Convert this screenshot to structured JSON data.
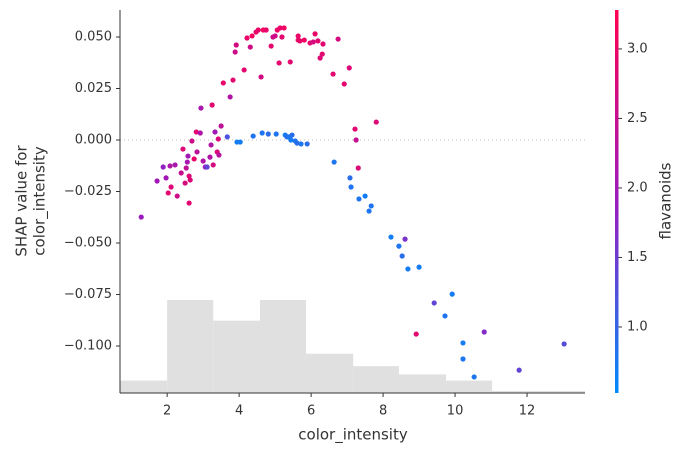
{
  "chart_data": {
    "type": "scatter",
    "xlabel": "color_intensity",
    "ylabel": [
      "SHAP value for",
      "color_intensity"
    ],
    "xlim": [
      0.69,
      13.61
    ],
    "xticks": [
      2,
      4,
      6,
      8,
      10,
      12
    ],
    "ylim": [
      -0.1228,
      0.0631
    ],
    "yticks": [
      {
        "value": -0.1,
        "label": "−0.100"
      },
      {
        "value": -0.075,
        "label": "−0.075"
      },
      {
        "value": -0.05,
        "label": "−0.050"
      },
      {
        "value": -0.025,
        "label": "−0.025"
      },
      {
        "value": 0,
        "label": "0.000"
      },
      {
        "value": 0.025,
        "label": "0.025"
      },
      {
        "value": 0.05,
        "label": "0.050"
      }
    ],
    "hline": 0,
    "x": [
      1.28,
      1.72,
      1.89,
      1.97,
      2.03,
      2.08,
      2.11,
      2.22,
      2.28,
      2.39,
      2.44,
      2.5,
      2.53,
      2.56,
      2.58,
      2.61,
      2.61,
      2.64,
      2.69,
      2.75,
      2.81,
      2.83,
      2.92,
      2.94,
      3.0,
      3.06,
      3.11,
      3.19,
      3.22,
      3.25,
      3.28,
      3.33,
      3.39,
      3.42,
      3.44,
      3.5,
      3.56,
      3.67,
      3.75,
      3.83,
      3.89,
      3.92,
      3.94,
      4.03,
      4.14,
      4.22,
      4.31,
      4.36,
      4.39,
      4.47,
      4.53,
      4.61,
      4.64,
      4.67,
      4.75,
      4.81,
      4.89,
      4.94,
      5.0,
      5.03,
      5.06,
      5.11,
      5.14,
      5.19,
      5.25,
      5.28,
      5.33,
      5.39,
      5.42,
      5.44,
      5.47,
      5.56,
      5.61,
      5.64,
      5.64,
      5.69,
      5.72,
      5.81,
      5.89,
      5.97,
      6.06,
      6.11,
      6.19,
      6.25,
      6.31,
      6.33,
      6.64,
      6.61,
      6.75,
      6.92,
      7.06,
      7.08,
      7.11,
      7.22,
      7.25,
      7.31,
      7.33,
      7.5,
      7.61,
      7.67,
      7.81,
      8.22,
      8.44,
      8.53,
      8.61,
      8.69,
      9.0,
      8.92,
      9.42,
      9.72,
      9.92,
      10.22,
      10.22,
      10.53,
      10.81,
      11.78,
      13.03
    ],
    "values": [
      -0.0374,
      -0.0199,
      -0.0131,
      -0.0184,
      -0.0257,
      -0.0126,
      -0.0228,
      -0.0121,
      -0.0272,
      -0.016,
      -0.0044,
      -0.0209,
      -0.0136,
      -0.0107,
      -0.0078,
      -0.0306,
      -0.0175,
      -0.0194,
      -0.0005,
      -0.0092,
      0.0039,
      -0.0058,
      0.0034,
      0.0155,
      -0.0102,
      -0.0131,
      -0.0131,
      -0.0083,
      -0.0024,
      0.017,
      -0.0121,
      0.0039,
      -0.0058,
      0.0005,
      -0.0073,
      0.0068,
      0.0277,
      0.0015,
      0.0209,
      0.0291,
      0.0427,
      0.0461,
      -0.001,
      -0.001,
      0.034,
      0.0495,
      0.0451,
      0.0505,
      0.0019,
      0.0524,
      0.0534,
      0.0306,
      0.0034,
      0.0534,
      0.0534,
      0.0029,
      0.0456,
      0.05,
      0.0505,
      0.0029,
      0.0534,
      0.0374,
      0.0544,
      0.05,
      0.0544,
      0.0024,
      0.0015,
      0.0015,
      0.0379,
      0,
      0.0024,
      -0.0005,
      -0.0015,
      0.0505,
      0.0485,
      0.0481,
      -0.0019,
      0.0485,
      -0.0019,
      0.0471,
      0.0476,
      0.0515,
      0.0481,
      0.0398,
      0.0417,
      0.0466,
      -0.0107,
      0.032,
      0.049,
      0.0272,
      0.035,
      -0.0184,
      -0.0228,
      0.0053,
      0,
      -0.0136,
      -0.0286,
      -0.0272,
      -0.0345,
      -0.032,
      0.0087,
      -0.0471,
      -0.0515,
      -0.0563,
      -0.0481,
      -0.0626,
      -0.0617,
      -0.0942,
      -0.0791,
      -0.0854,
      -0.0748,
      -0.0985,
      -0.1063,
      -0.115,
      -0.0932,
      -0.1117,
      -0.099
    ],
    "color_values": [
      1.9,
      2.0,
      1.8,
      2.0,
      2.9,
      2.2,
      2.8,
      2.1,
      2.6,
      2.5,
      2.8,
      2.7,
      2.4,
      2.1,
      2.0,
      2.9,
      2.8,
      2.8,
      2.6,
      3.0,
      2.9,
      2.4,
      2.2,
      2.1,
      2.2,
      1.9,
      1.4,
      2.2,
      2.2,
      2.9,
      2.7,
      2.0,
      2.8,
      2.8,
      2.3,
      2.4,
      3.0,
      1.2,
      2.2,
      2.9,
      2.6,
      2.7,
      0.7,
      0.7,
      2.9,
      3.0,
      2.6,
      3.1,
      0.8,
      3.0,
      3.0,
      2.7,
      0.8,
      3.1,
      3.0,
      0.9,
      2.9,
      2.6,
      2.6,
      0.8,
      3.0,
      2.9,
      3.0,
      2.9,
      3.1,
      0.7,
      0.9,
      0.8,
      2.9,
      0.7,
      0.9,
      0.8,
      0.9,
      3.0,
      3.0,
      3.0,
      0.8,
      3.1,
      0.9,
      2.9,
      2.7,
      3.0,
      2.9,
      2.8,
      2.9,
      2.9,
      0.8,
      2.9,
      2.7,
      2.9,
      2.8,
      0.9,
      0.8,
      2.9,
      2.5,
      2.8,
      0.8,
      0.7,
      0.8,
      0.8,
      2.8,
      0.7,
      0.8,
      0.9,
      1.6,
      0.7,
      0.7,
      2.9,
      1.4,
      0.8,
      0.7,
      0.7,
      0.8,
      0.8,
      1.7,
      1.4,
      1.3
    ],
    "colormap": [
      "#008bfb",
      "#9a1bbd",
      "#ff0052"
    ],
    "colorbar_label": "flavanoids",
    "clim": [
      0.525,
      3.28
    ],
    "cticks": [
      {
        "value": 1,
        "label": "1.0"
      },
      1.5,
      {
        "value": 2,
        "label": "2.0"
      },
      2.5,
      {
        "value": 3,
        "label": "3.0"
      }
    ],
    "hist_bins": [
      0.69,
      2.0,
      3.28,
      4.58,
      5.86,
      7.17,
      8.44,
      9.75,
      11.03,
      12.33,
      13.61
    ],
    "hist_counts": [
      6,
      45,
      35,
      45,
      19,
      13,
      9,
      6,
      1,
      1
    ],
    "hist_color": "#e0e0e0"
  }
}
